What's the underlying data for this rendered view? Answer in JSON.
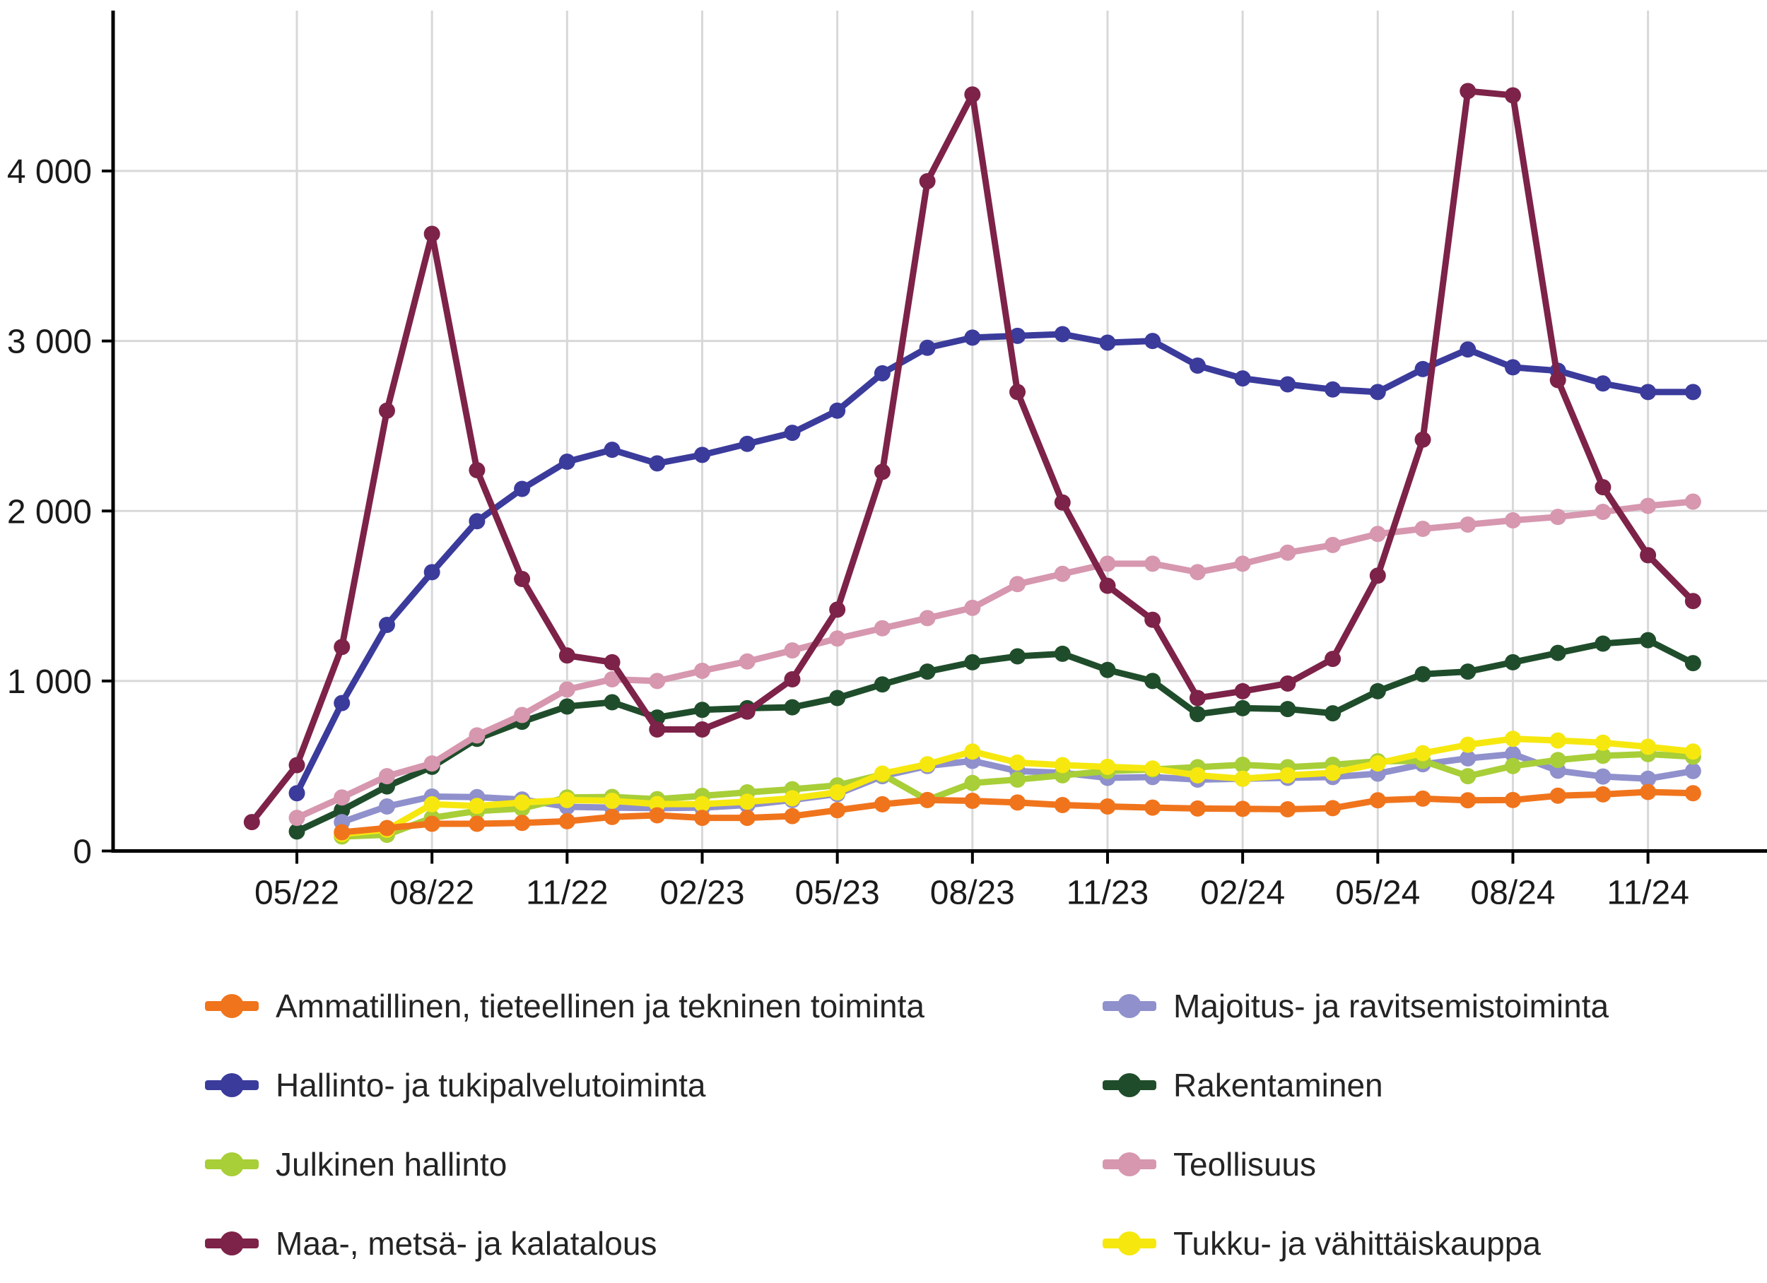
{
  "chart_data": {
    "type": "line",
    "title": "",
    "xlabel": "",
    "ylabel": "",
    "grid": true,
    "background": "#ffffff",
    "axis_color": "#000000",
    "grid_color": "#d8d8d8",
    "text_color": "#1a1a1a",
    "ylim": [
      0,
      4700
    ],
    "y_ticks": {
      "values": [
        0,
        1000,
        2000,
        3000,
        4000
      ],
      "labels": [
        "0",
        "1 000",
        "2 000",
        "3 000",
        "4 000"
      ]
    },
    "x": [
      "04/22",
      "05/22",
      "06/22",
      "07/22",
      "08/22",
      "09/22",
      "10/22",
      "11/22",
      "12/22",
      "01/23",
      "02/23",
      "03/23",
      "04/23",
      "05/23",
      "06/23",
      "07/23",
      "08/23",
      "09/23",
      "10/23",
      "11/23",
      "12/23",
      "01/24",
      "02/24",
      "03/24",
      "04/24",
      "05/24",
      "06/24",
      "07/24",
      "08/24",
      "09/24",
      "10/24",
      "11/24",
      "12/24"
    ],
    "x_tick_indices": [
      1,
      4,
      7,
      10,
      13,
      16,
      19,
      22,
      25,
      28,
      31
    ],
    "x_tick_labels": [
      "05/22",
      "08/22",
      "11/22",
      "02/23",
      "05/23",
      "08/23",
      "11/23",
      "02/24",
      "05/24",
      "08/24",
      "11/24"
    ],
    "legend_position": "bottom",
    "legend_columns": 2,
    "series": [
      {
        "name": "Ammatillinen, tieteellinen ja tekninen toiminta",
        "key": "ammatillinen",
        "color": "#F0741C",
        "column": 1,
        "values": [
          null,
          null,
          110,
          135,
          160,
          160,
          165,
          175,
          200,
          210,
          195,
          195,
          205,
          240,
          275,
          300,
          295,
          285,
          270,
          262,
          255,
          250,
          248,
          245,
          252,
          298,
          308,
          298,
          300,
          325,
          333,
          347,
          340
        ]
      },
      {
        "name": "Hallinto- ja tukipalvelutoiminta",
        "key": "hallinto",
        "color": "#3B3B9C",
        "column": 1,
        "values": [
          null,
          340,
          870,
          1330,
          1640,
          1940,
          2130,
          2290,
          2360,
          2280,
          2330,
          2395,
          2460,
          2590,
          2810,
          2960,
          3020,
          3030,
          3040,
          2990,
          3000,
          2855,
          2780,
          2745,
          2715,
          2700,
          2835,
          2950,
          2845,
          2825,
          2750,
          2700,
          2700
        ]
      },
      {
        "name": "Julkinen hallinto",
        "key": "julkinen",
        "color": "#A8CE38",
        "column": 1,
        "values": [
          null,
          null,
          85,
          95,
          195,
          235,
          250,
          315,
          318,
          305,
          324,
          345,
          363,
          386,
          450,
          300,
          400,
          420,
          445,
          470,
          480,
          493,
          507,
          493,
          507,
          528,
          530,
          440,
          500,
          535,
          560,
          570,
          555
        ]
      },
      {
        "name": "Maa-, metsä- ja kalatalous",
        "key": "maa_metsa",
        "color": "#7D2248",
        "column": 1,
        "values": [
          170,
          505,
          1200,
          2590,
          3630,
          2240,
          1600,
          1150,
          1110,
          715,
          715,
          820,
          1010,
          1420,
          2230,
          3940,
          4450,
          2700,
          2050,
          1560,
          1360,
          900,
          940,
          985,
          1130,
          1620,
          2420,
          4470,
          4445,
          2770,
          2140,
          1740,
          1470
        ]
      },
      {
        "name": "Majoitus- ja ravitsemistoiminta",
        "key": "majoitus",
        "color": "#8F90CC",
        "column": 2,
        "values": [
          null,
          null,
          170,
          262,
          320,
          317,
          303,
          260,
          255,
          252,
          255,
          270,
          300,
          335,
          440,
          500,
          530,
          470,
          460,
          430,
          435,
          420,
          425,
          430,
          435,
          455,
          510,
          545,
          570,
          472,
          438,
          425,
          470
        ]
      },
      {
        "name": "Rakentaminen",
        "key": "rakentaminen",
        "color": "#1F4D2B",
        "column": 2,
        "values": [
          null,
          115,
          240,
          380,
          495,
          660,
          760,
          850,
          875,
          785,
          830,
          840,
          845,
          900,
          980,
          1055,
          1110,
          1145,
          1160,
          1065,
          1000,
          805,
          840,
          835,
          810,
          940,
          1040,
          1055,
          1110,
          1165,
          1220,
          1240,
          1105
        ]
      },
      {
        "name": "Teollisuus",
        "key": "teollisuus",
        "color": "#D697AF",
        "column": 2,
        "values": [
          null,
          195,
          315,
          440,
          515,
          680,
          800,
          950,
          1010,
          1000,
          1060,
          1115,
          1180,
          1250,
          1310,
          1370,
          1430,
          1570,
          1630,
          1690,
          1690,
          1640,
          1690,
          1755,
          1800,
          1865,
          1895,
          1920,
          1945,
          1965,
          1995,
          2030,
          2055
        ]
      },
      {
        "name": "Tukku- ja vähittäiskauppa",
        "key": "tukku",
        "color": "#F6E80F",
        "column": 2,
        "values": [
          null,
          null,
          100,
          125,
          275,
          265,
          285,
          300,
          295,
          276,
          276,
          290,
          310,
          345,
          455,
          510,
          585,
          520,
          505,
          495,
          485,
          445,
          425,
          445,
          460,
          515,
          575,
          625,
          660,
          650,
          637,
          613,
          585
        ]
      }
    ],
    "draw_order": [
      "hallinto",
      "rakentaminen",
      "teollisuus",
      "majoitus",
      "julkinen",
      "tukku",
      "ammatillinen",
      "maa_metsa"
    ],
    "style": {
      "line_width": 9,
      "point_radius": 11.5
    }
  },
  "layout_note_free_fields": {}
}
